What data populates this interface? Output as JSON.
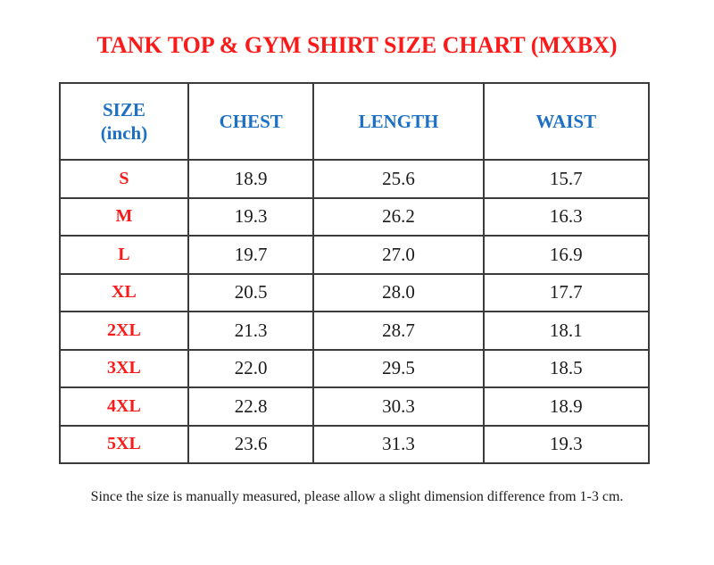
{
  "title": "TANK TOP & GYM SHIRT SIZE CHART (MXBX)",
  "footer_note": "Since the size is manually measured, please allow a slight dimension difference from 1-3 cm.",
  "colors": {
    "title_red": "#fb1a1a",
    "header_blue": "#1d70c4",
    "body_text": "#1b1b1b",
    "border": "#3b3b3b",
    "background": "#ffffff"
  },
  "chart_data": {
    "type": "table",
    "title": "TANK TOP & GYM SHIRT SIZE CHART (MXBX)",
    "unit": "inch",
    "columns": [
      {
        "label": "SIZE",
        "sublabel": "(inch)"
      },
      {
        "label": "CHEST"
      },
      {
        "label": "LENGTH"
      },
      {
        "label": "WAIST"
      }
    ],
    "rows": [
      {
        "size": "S",
        "chest": "18.9",
        "length": "25.6",
        "waist": "15.7"
      },
      {
        "size": "M",
        "chest": "19.3",
        "length": "26.2",
        "waist": "16.3"
      },
      {
        "size": "L",
        "chest": "19.7",
        "length": "27.0",
        "waist": "16.9"
      },
      {
        "size": "XL",
        "chest": "20.5",
        "length": "28.0",
        "waist": "17.7"
      },
      {
        "size": "2XL",
        "chest": "21.3",
        "length": "28.7",
        "waist": "18.1"
      },
      {
        "size": "3XL",
        "chest": "22.0",
        "length": "29.5",
        "waist": "18.5"
      },
      {
        "size": "4XL",
        "chest": "22.8",
        "length": "30.3",
        "waist": "18.9"
      },
      {
        "size": "5XL",
        "chest": "23.6",
        "length": "31.3",
        "waist": "19.3"
      }
    ],
    "note": "Since the size is manually measured, please allow a slight dimension difference from 1-3 cm."
  }
}
